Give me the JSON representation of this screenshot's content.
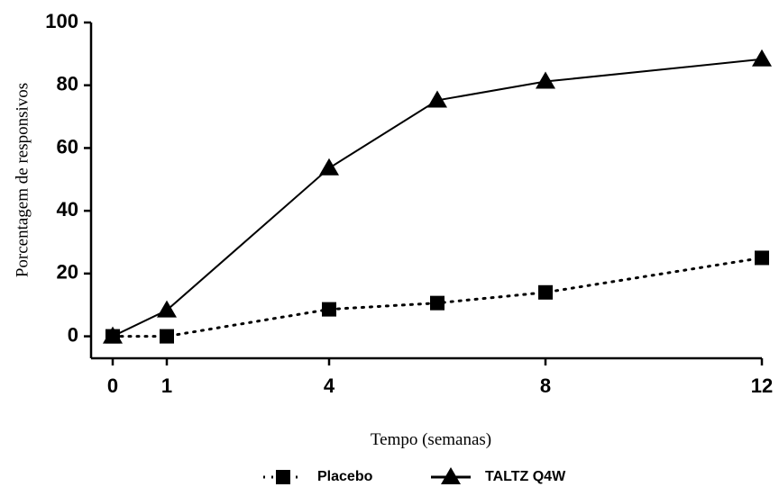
{
  "chart_data": {
    "type": "line",
    "x_label": "Tempo (semanas)",
    "y_label": "Porcentagem de responsivos",
    "x": [
      0,
      1,
      4,
      6,
      8,
      12
    ],
    "series": [
      {
        "name": "Placebo",
        "color": "#000000",
        "line_style": "dotted",
        "marker": "square",
        "values": [
          0,
          0,
          8.6,
          10.6,
          14,
          25
        ]
      },
      {
        "name": "TALTZ Q4W",
        "color": "#000000",
        "line_style": "solid",
        "marker": "triangle",
        "values": [
          0,
          8.3,
          53.6,
          75.2,
          81.2,
          88.3
        ]
      }
    ],
    "xlim": [
      -0.4,
      12
    ],
    "xticks": [
      0,
      1,
      4,
      8,
      12
    ],
    "ylim": [
      -7,
      100
    ],
    "yticks": [
      0,
      20,
      40,
      60,
      80,
      100
    ],
    "grid": false,
    "legend": "bottom"
  }
}
